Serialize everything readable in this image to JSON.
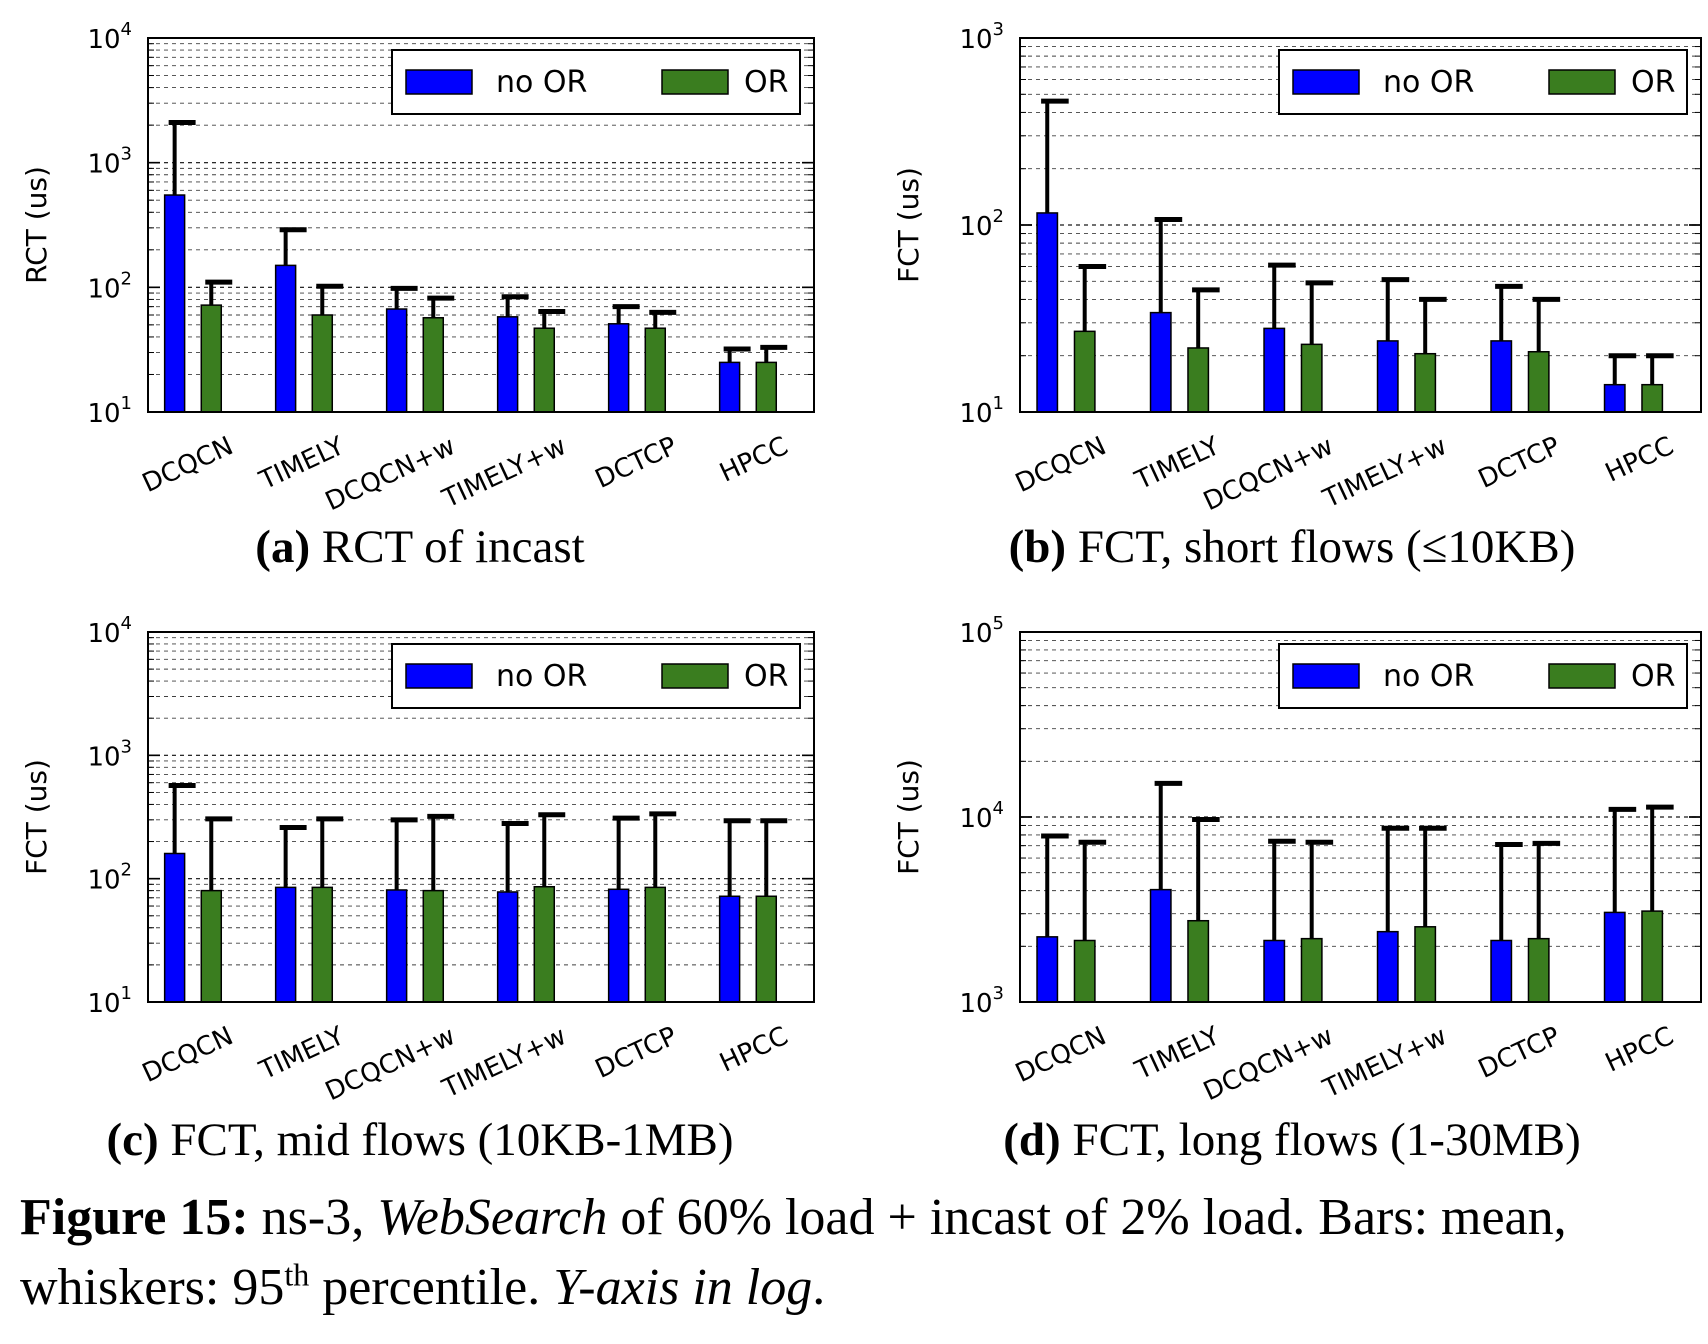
{
  "legend": {
    "no_or": "no OR",
    "or": "OR"
  },
  "colors": {
    "no_or": "#0000ff",
    "or": "#3a7d1f",
    "whisker": "#000000",
    "grid": "#000000"
  },
  "categories": [
    "DCQCN",
    "TIMELY",
    "DCQCN+w",
    "TIMELY+w",
    "DCTCP",
    "HPCC"
  ],
  "chart_data": [
    {
      "type": "bar",
      "panel_letter": "(a)",
      "title": "RCT of incast",
      "ylabel": "RCT (us)",
      "yscale": "log",
      "ylim": [
        10,
        10000
      ],
      "grid": true,
      "legend_position": "top-right",
      "categories": [
        "DCQCN",
        "TIMELY",
        "DCQCN+w",
        "TIMELY+w",
        "DCTCP",
        "HPCC"
      ],
      "series": [
        {
          "name": "no OR",
          "values": [
            550,
            150,
            67,
            58,
            51,
            25
          ],
          "whiskers_p95": [
            2100,
            290,
            98,
            84,
            70,
            32
          ]
        },
        {
          "name": "OR",
          "values": [
            72,
            60,
            57,
            47,
            47,
            25
          ],
          "whiskers_p95": [
            110,
            102,
            82,
            64,
            63,
            33
          ]
        }
      ]
    },
    {
      "type": "bar",
      "panel_letter": "(b)",
      "title": "FCT, short flows (≤10KB)",
      "ylabel": "FCT (us)",
      "yscale": "log",
      "ylim": [
        10,
        1000
      ],
      "grid": true,
      "legend_position": "top-right",
      "categories": [
        "DCQCN",
        "TIMELY",
        "DCQCN+w",
        "TIMELY+w",
        "DCTCP",
        "HPCC"
      ],
      "series": [
        {
          "name": "no OR",
          "values": [
            116,
            34,
            28,
            24,
            24,
            14
          ],
          "whiskers_p95": [
            460,
            107,
            61,
            51,
            47,
            20
          ]
        },
        {
          "name": "OR",
          "values": [
            27,
            22,
            23,
            20.5,
            21,
            14
          ],
          "whiskers_p95": [
            60,
            45,
            49,
            40,
            40,
            20
          ]
        }
      ]
    },
    {
      "type": "bar",
      "panel_letter": "(c)",
      "title": "FCT, mid flows (10KB-1MB)",
      "ylabel": "FCT (us)",
      "yscale": "log",
      "ylim": [
        10,
        10000
      ],
      "grid": true,
      "legend_position": "top-right",
      "categories": [
        "DCQCN",
        "TIMELY",
        "DCQCN+w",
        "TIMELY+w",
        "DCTCP",
        "HPCC"
      ],
      "series": [
        {
          "name": "no OR",
          "values": [
            160,
            85,
            81,
            78,
            82,
            72
          ],
          "whiskers_p95": [
            570,
            260,
            300,
            280,
            310,
            295
          ]
        },
        {
          "name": "OR",
          "values": [
            80,
            85,
            80,
            86,
            85,
            72
          ],
          "whiskers_p95": [
            305,
            305,
            320,
            330,
            335,
            295
          ]
        }
      ]
    },
    {
      "type": "bar",
      "panel_letter": "(d)",
      "title": "FCT, long flows (1-30MB)",
      "ylabel": "FCT (us)",
      "yscale": "log",
      "ylim": [
        1000,
        100000
      ],
      "grid": true,
      "legend_position": "top-right",
      "categories": [
        "DCQCN",
        "TIMELY",
        "DCQCN+w",
        "TIMELY+w",
        "DCTCP",
        "HPCC"
      ],
      "series": [
        {
          "name": "no OR",
          "values": [
            2250,
            4050,
            2150,
            2400,
            2150,
            3050
          ],
          "whiskers_p95": [
            7900,
            15200,
            7400,
            8700,
            7100,
            11000
          ]
        },
        {
          "name": "OR",
          "values": [
            2150,
            2750,
            2200,
            2550,
            2200,
            3100
          ],
          "whiskers_p95": [
            7300,
            9700,
            7300,
            8700,
            7200,
            11300
          ]
        }
      ]
    }
  ],
  "caption": {
    "label": "Figure 15:",
    "text1": " ns-3, ",
    "italic1": "WebSearch",
    "text2": " of 60% load + incast of 2% load. Bars: mean, whiskers: 95",
    "sup": "th",
    "text3": " percentile. ",
    "italic2": "Y-axis in log",
    "text4": "."
  }
}
